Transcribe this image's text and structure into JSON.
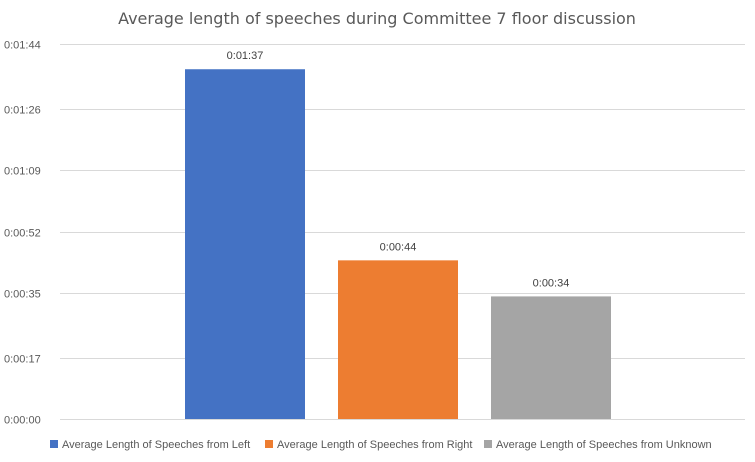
{
  "chart_data": {
    "type": "bar",
    "title": "Average length of speeches during Committee 7 floor discussion",
    "xlabel": "",
    "ylabel": "",
    "y_unit": "seconds",
    "ylim": [
      0,
      104
    ],
    "ticks": [
      {
        "value": 0,
        "label": "0:00:00"
      },
      {
        "value": 17,
        "label": "0:00:17"
      },
      {
        "value": 35,
        "label": "0:00:35"
      },
      {
        "value": 52,
        "label": "0:00:52"
      },
      {
        "value": 69,
        "label": "0:01:09"
      },
      {
        "value": 86,
        "label": "0:01:26"
      },
      {
        "value": 104,
        "label": "0:01:44"
      }
    ],
    "grid": true,
    "legend_position": "bottom",
    "series": [
      {
        "name": "Average Length of Speeches from Left",
        "value": 97,
        "label": "0:01:37",
        "color": "#4472c4"
      },
      {
        "name": "Average Length of Speeches from Right",
        "value": 44,
        "label": "0:00:44",
        "color": "#ed7d31"
      },
      {
        "name": "Average Length of Speeches from Unknown",
        "value": 34,
        "label": "0:00:34",
        "color": "#a5a5a5"
      }
    ]
  }
}
